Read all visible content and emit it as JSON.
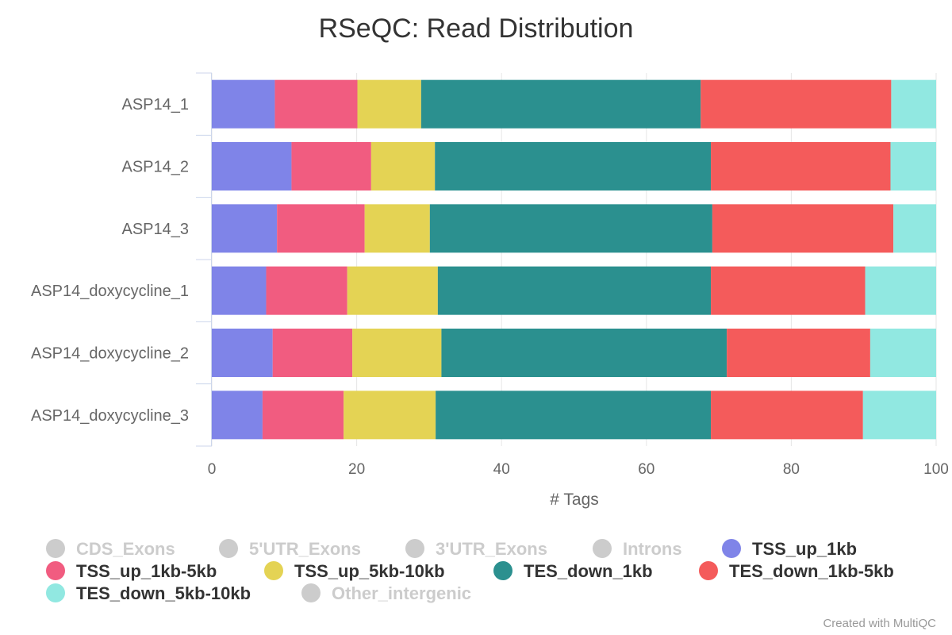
{
  "chart_data": {
    "type": "bar",
    "orientation": "horizontal",
    "stacked": true,
    "title": "RSeQC: Read Distribution",
    "xlabel": "# Tags",
    "ylabel": "",
    "xlim": [
      0,
      100
    ],
    "xticks": [
      "0",
      "20",
      "40",
      "60",
      "80",
      "100"
    ],
    "grid": true,
    "legend_position": "bottom",
    "categories": [
      "ASP14_1",
      "ASP14_2",
      "ASP14_3",
      "ASP14_doxycycline_1",
      "ASP14_doxycycline_2",
      "ASP14_doxycycline_3"
    ],
    "series": [
      {
        "name": "CDS_Exons",
        "color": "#cccccc",
        "hidden": true,
        "values": null
      },
      {
        "name": "5'UTR_Exons",
        "color": "#cccccc",
        "hidden": true,
        "values": null
      },
      {
        "name": "3'UTR_Exons",
        "color": "#cccccc",
        "hidden": true,
        "values": null
      },
      {
        "name": "Introns",
        "color": "#cccccc",
        "hidden": true,
        "values": null
      },
      {
        "name": "TSS_up_1kb",
        "color": "#7f84e8",
        "hidden": false,
        "values": [
          8.7,
          11.0,
          9.0,
          7.5,
          8.4,
          7.0
        ]
      },
      {
        "name": "TSS_up_1kb-5kb",
        "color": "#f15c80",
        "hidden": false,
        "values": [
          11.4,
          11.0,
          12.1,
          11.2,
          11.0,
          11.2
        ]
      },
      {
        "name": "TSS_up_5kb-10kb",
        "color": "#e4d354",
        "hidden": false,
        "values": [
          8.8,
          8.8,
          9.0,
          12.5,
          12.3,
          12.7
        ]
      },
      {
        "name": "TES_down_1kb",
        "color": "#2b908f",
        "hidden": false,
        "values": [
          38.6,
          38.1,
          39.0,
          37.7,
          39.4,
          38.0
        ]
      },
      {
        "name": "TES_down_1kb-5kb",
        "color": "#f45b5b",
        "hidden": false,
        "values": [
          26.3,
          24.8,
          25.0,
          21.3,
          19.8,
          21.0
        ]
      },
      {
        "name": "TES_down_5kb-10kb",
        "color": "#91e8e1",
        "hidden": false,
        "values": [
          6.2,
          6.3,
          5.9,
          9.8,
          9.1,
          10.1
        ]
      },
      {
        "name": "Other_intergenic",
        "color": "#cccccc",
        "hidden": true,
        "values": null
      }
    ]
  },
  "credits": "Created with MultiQC",
  "colors": {
    "text_dark": "#333333",
    "text_muted": "#666666",
    "legend_text": "#333333",
    "legend_hidden": "#cccccc",
    "grid": "#e6e6e6",
    "axis_line": "#ccd6eb"
  }
}
